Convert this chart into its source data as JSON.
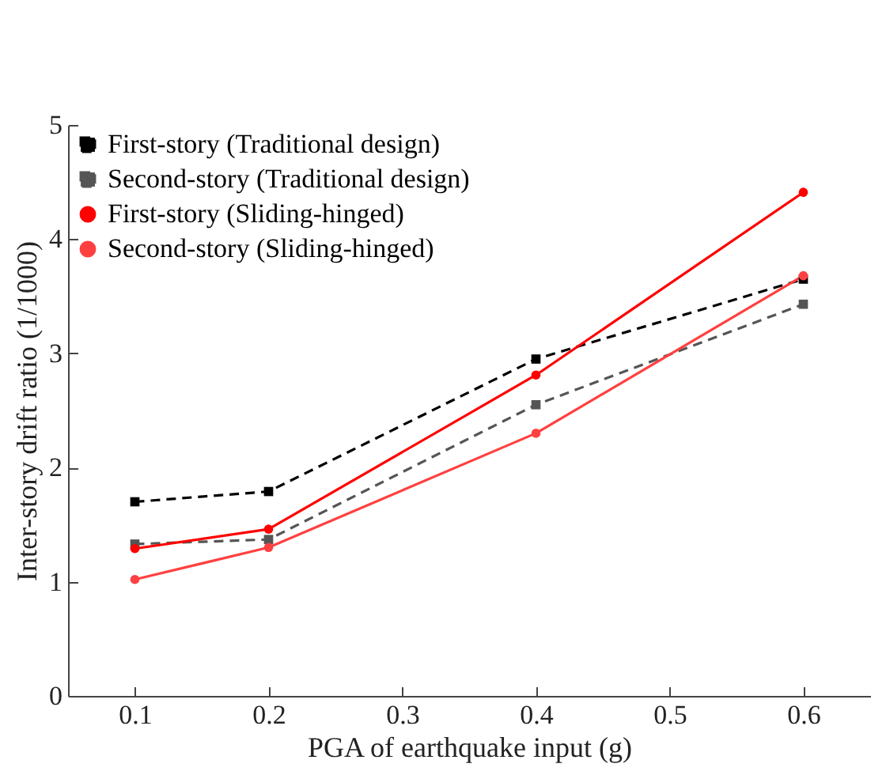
{
  "chart_data": {
    "type": "line",
    "xlabel": "PGA of earthquake input (g)",
    "ylabel": "Inter-story drift ratio (1/1000)",
    "x": [
      0.1,
      0.2,
      0.4,
      0.6
    ],
    "series": [
      {
        "name": "First-story (Traditional design)",
        "color": "#000000",
        "marker": "square",
        "line_style": "dashed",
        "values": [
          1.7,
          1.79,
          2.95,
          3.65
        ]
      },
      {
        "name": "Second-story (Traditional design)",
        "color": "#555555",
        "marker": "square",
        "line_style": "dashed",
        "values": [
          1.33,
          1.37,
          2.55,
          3.43
        ]
      },
      {
        "name": "First-story (Sliding-hinged)",
        "color": "#ff0000",
        "marker": "circle",
        "line_style": "solid",
        "values": [
          1.29,
          1.46,
          2.81,
          4.41
        ]
      },
      {
        "name": "Second-story (Sliding-hinged)",
        "color": "#ff4040",
        "marker": "circle",
        "line_style": "solid",
        "values": [
          1.02,
          1.3,
          2.3,
          3.68
        ]
      }
    ],
    "xlim": [
      0.05,
      0.65
    ],
    "xticks": [
      0.1,
      0.2,
      0.3,
      0.4,
      0.5,
      0.6
    ],
    "ylim": [
      0,
      5
    ],
    "yticks": [
      0,
      1,
      2,
      3,
      4,
      5
    ],
    "grid": false,
    "legend": "top left"
  }
}
